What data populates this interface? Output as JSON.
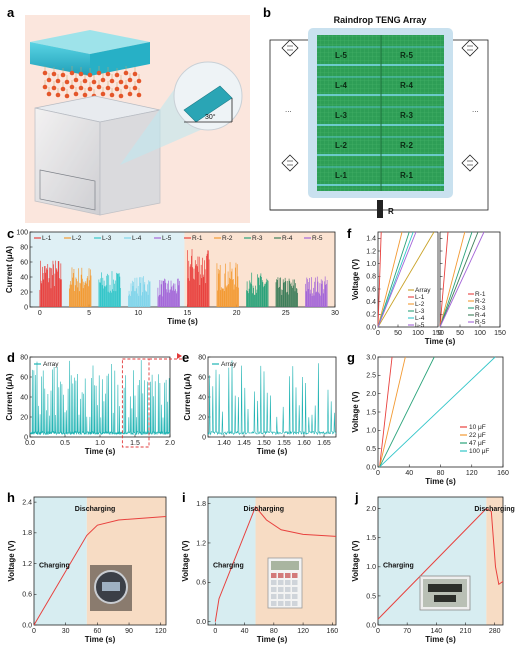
{
  "panels": {
    "a": {
      "letter": "a",
      "tilt": "30°"
    },
    "b": {
      "letter": "b",
      "title": "Raindrop TENG Array",
      "left": [
        "L-5",
        "L-4",
        "L-3",
        "L-2",
        "L-1"
      ],
      "right": [
        "R-5",
        "R-4",
        "R-3",
        "R-2",
        "R-1"
      ],
      "resistor": "R",
      "dots": "..."
    },
    "c": {
      "letter": "c"
    },
    "d": {
      "letter": "d"
    },
    "e": {
      "letter": "e"
    },
    "f": {
      "letter": "f"
    },
    "g": {
      "letter": "g"
    },
    "h": {
      "letter": "h"
    },
    "i": {
      "letter": "i"
    },
    "j": {
      "letter": "j"
    }
  },
  "colors": {
    "bg_panel_a": "#fbe6dd",
    "teng_green": "#2e9e56",
    "water": "#36c3d6",
    "charge_bg": "#d7edf1",
    "discharge_bg": "#f7dcc4",
    "L1": "#e8413e",
    "L2": "#f39a33",
    "L3": "#33c6c9",
    "L4": "#7fd4ea",
    "L5": "#a466d8",
    "R1": "#e8413e",
    "R2": "#f39a33",
    "R3": "#2aa37a",
    "R4": "#3d7d5a",
    "R5": "#a466d8"
  },
  "chart_data": [
    {
      "id": "c",
      "type": "bar",
      "xlabel": "Time (s)",
      "ylabel": "Current (μA)",
      "xlim": [
        -1,
        30
      ],
      "ylim": [
        0,
        100
      ],
      "xticks": [
        0,
        5,
        10,
        15,
        20,
        25,
        30
      ],
      "yticks": [
        0,
        20,
        40,
        60,
        80,
        100
      ],
      "legend_position": "top",
      "series": [
        {
          "name": "L-1",
          "color": "#e8413e",
          "x_range": [
            0,
            2.2
          ],
          "peak": 65
        },
        {
          "name": "L-2",
          "color": "#f39a33",
          "x_range": [
            3,
            5.2
          ],
          "peak": 55
        },
        {
          "name": "L-3",
          "color": "#33c6c9",
          "x_range": [
            6,
            8.2
          ],
          "peak": 48
        },
        {
          "name": "L-4",
          "color": "#7fd4ea",
          "x_range": [
            9,
            11.2
          ],
          "peak": 42
        },
        {
          "name": "L-5",
          "color": "#a466d8",
          "x_range": [
            12,
            14.2
          ],
          "peak": 38
        },
        {
          "name": "R-1",
          "color": "#e8413e",
          "x_range": [
            15,
            17.2
          ],
          "peak": 80
        },
        {
          "name": "R-2",
          "color": "#f39a33",
          "x_range": [
            18,
            20.2
          ],
          "peak": 60
        },
        {
          "name": "R-3",
          "color": "#2aa37a",
          "x_range": [
            21,
            23.2
          ],
          "peak": 46
        },
        {
          "name": "R-4",
          "color": "#3d7d5a",
          "x_range": [
            24,
            26.2
          ],
          "peak": 40
        },
        {
          "name": "R-5",
          "color": "#a466d8",
          "x_range": [
            27,
            29.2
          ],
          "peak": 42
        }
      ]
    },
    {
      "id": "d",
      "type": "line",
      "xlabel": "Time (s)",
      "ylabel": "Current (μA)",
      "xlim": [
        0,
        2.0
      ],
      "ylim": [
        0,
        80
      ],
      "xticks": [
        0.0,
        0.5,
        1.0,
        1.5,
        2.0
      ],
      "yticks": [
        0,
        20,
        40,
        60,
        80
      ],
      "series": [
        {
          "name": "Array",
          "color": "#1fb3b3",
          "baseline": 4,
          "peak_max": 78
        }
      ],
      "zoom_box": [
        1.32,
        1.7
      ]
    },
    {
      "id": "e",
      "type": "line",
      "xlabel": "Time (s)",
      "ylabel": "Current (μA)",
      "xlim": [
        1.36,
        1.68
      ],
      "ylim": [
        0,
        80
      ],
      "xticks": [
        1.4,
        1.45,
        1.5,
        1.55,
        1.6,
        1.65
      ],
      "yticks": [
        0,
        20,
        40,
        60,
        80
      ],
      "series": [
        {
          "name": "Array",
          "color": "#1fb3b3",
          "baseline": 4,
          "peak_max": 78
        }
      ]
    },
    {
      "id": "f",
      "type": "line",
      "xlabel": "Time (s)",
      "ylabel": "Voltage (V)",
      "ylim": [
        0,
        1.5
      ],
      "yticks": [
        0.0,
        0.2,
        0.4,
        0.6,
        0.8,
        1.0,
        1.2,
        1.4
      ],
      "subplots": [
        {
          "xlim": [
            0,
            150
          ],
          "xticks": [
            0,
            50,
            100,
            150
          ],
          "series": [
            {
              "name": "Array",
              "color": "#c9a227",
              "t_full": 140
            },
            {
              "name": "L-1",
              "color": "#e8413e",
              "t_full": 8
            },
            {
              "name": "L-2",
              "color": "#f39a33",
              "t_full": 60
            },
            {
              "name": "L-3",
              "color": "#2aa37a",
              "t_full": 78
            },
            {
              "name": "L-4",
              "color": "#33c6c9",
              "t_full": 88
            },
            {
              "name": "L-5",
              "color": "#a466d8",
              "t_full": 95
            }
          ]
        },
        {
          "xlim": [
            0,
            150
          ],
          "xticks": [
            0,
            50,
            100,
            150
          ],
          "series": [
            {
              "name": "R-1",
              "color": "#e8413e",
              "t_full": 20
            },
            {
              "name": "R-2",
              "color": "#f39a33",
              "t_full": 62
            },
            {
              "name": "R-3",
              "color": "#2aa37a",
              "t_full": 80
            },
            {
              "name": "R-4",
              "color": "#3d7d5a",
              "t_full": 95
            },
            {
              "name": "R-5",
              "color": "#a466d8",
              "t_full": 110
            }
          ]
        }
      ]
    },
    {
      "id": "g",
      "type": "line",
      "xlabel": "Time (s)",
      "ylabel": "Voltage (V)",
      "xlim": [
        0,
        160
      ],
      "ylim": [
        0,
        3.0
      ],
      "xticks": [
        0,
        40,
        80,
        120,
        160
      ],
      "yticks": [
        0.0,
        0.5,
        1.0,
        1.5,
        2.0,
        2.5,
        3.0
      ],
      "series": [
        {
          "name": "10 μF",
          "color": "#e8413e",
          "t_full": 18
        },
        {
          "name": "22 μF",
          "color": "#f39a33",
          "t_full": 35
        },
        {
          "name": "47 μF",
          "color": "#2aa37a",
          "t_full": 72
        },
        {
          "name": "100 μF",
          "color": "#33c6c9",
          "t_full": 150
        }
      ]
    },
    {
      "id": "h",
      "type": "line",
      "xlabel": "Time (s)",
      "ylabel": "Voltage (V)",
      "xlim": [
        0,
        125
      ],
      "ylim": [
        0,
        2.5
      ],
      "xticks": [
        0,
        30,
        60,
        90,
        120
      ],
      "yticks": [
        0.0,
        0.6,
        1.2,
        1.8,
        2.4
      ],
      "charge_label": "Charging",
      "discharge_label": "Discharging",
      "switch_x": 50,
      "points": [
        [
          0,
          0
        ],
        [
          50,
          1.75
        ],
        [
          60,
          1.95
        ],
        [
          80,
          2.05
        ],
        [
          125,
          2.12
        ]
      ]
    },
    {
      "id": "i",
      "type": "line",
      "xlabel": "Time (s)",
      "ylabel": "Voltage (V)",
      "xlim": [
        -10,
        165
      ],
      "ylim": [
        -0.05,
        1.9
      ],
      "xticks": [
        0,
        40,
        80,
        120,
        160
      ],
      "yticks": [
        0.0,
        0.6,
        1.2,
        1.8
      ],
      "charge_label": "Charging",
      "discharge_label": "Discharging",
      "switch_x": 55,
      "points": [
        [
          0,
          0
        ],
        [
          5,
          0.35
        ],
        [
          55,
          1.75
        ],
        [
          70,
          1.55
        ],
        [
          90,
          1.4
        ],
        [
          120,
          1.33
        ],
        [
          165,
          1.3
        ]
      ]
    },
    {
      "id": "j",
      "type": "line",
      "xlabel": "Time (s)",
      "ylabel": "Voltage (V)",
      "xlim": [
        0,
        300
      ],
      "ylim": [
        0,
        2.2
      ],
      "xticks": [
        0,
        70,
        140,
        210,
        280
      ],
      "yticks": [
        0.0,
        0.5,
        1.0,
        1.5,
        2.0
      ],
      "charge_label": "Charging",
      "discharge_label": "Discharging",
      "switch_x": 260,
      "points": [
        [
          0,
          0.1
        ],
        [
          260,
          2.0
        ],
        [
          272,
          1.95
        ],
        [
          282,
          1.0
        ],
        [
          290,
          0.7
        ],
        [
          300,
          0.75
        ]
      ]
    }
  ]
}
